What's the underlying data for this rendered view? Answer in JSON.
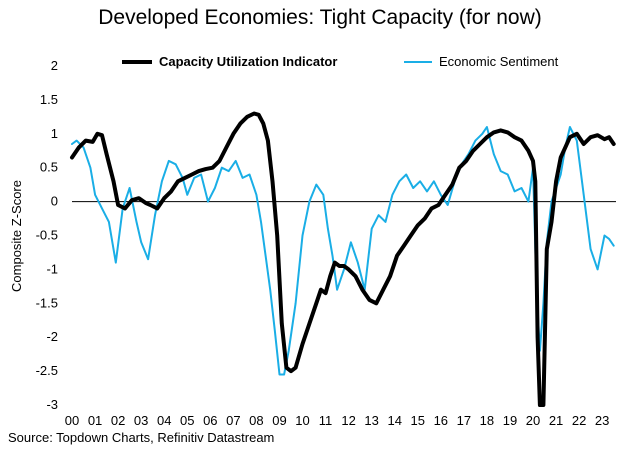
{
  "chart_data": {
    "type": "line",
    "title": "Developed Economies: Tight Capacity (for now)",
    "xlabel": "",
    "ylabel": "Composite Z-Score",
    "ylim": [
      -3,
      2
    ],
    "xlim": [
      2000,
      2023.6
    ],
    "yticks": [
      "2",
      "1.5",
      "1",
      "0.5",
      "0",
      "-0.5",
      "-1",
      "-1.5",
      "-2",
      "-2.5",
      "-3"
    ],
    "xticks": [
      "00",
      "01",
      "02",
      "03",
      "04",
      "05",
      "06",
      "07",
      "08",
      "09",
      "10",
      "11",
      "12",
      "13",
      "14",
      "15",
      "16",
      "17",
      "18",
      "19",
      "20",
      "21",
      "22",
      "23"
    ],
    "series": [
      {
        "name": "Capacity Utilization Indicator",
        "color": "#000000",
        "style": "bold",
        "x": [
          2000.0,
          2000.3,
          2000.6,
          2000.9,
          2001.1,
          2001.3,
          2001.5,
          2001.8,
          2002.0,
          2002.3,
          2002.6,
          2002.9,
          2003.2,
          2003.4,
          2003.7,
          2004.0,
          2004.3,
          2004.6,
          2004.9,
          2005.2,
          2005.5,
          2005.8,
          2006.1,
          2006.4,
          2006.7,
          2007.0,
          2007.3,
          2007.6,
          2007.9,
          2008.1,
          2008.3,
          2008.5,
          2008.7,
          2008.9,
          2009.1,
          2009.3,
          2009.5,
          2009.7,
          2010.0,
          2010.3,
          2010.6,
          2010.8,
          2011.0,
          2011.2,
          2011.4,
          2011.6,
          2011.8,
          2012.0,
          2012.3,
          2012.6,
          2012.9,
          2013.2,
          2013.5,
          2013.8,
          2014.1,
          2014.4,
          2014.7,
          2015.0,
          2015.3,
          2015.6,
          2015.9,
          2016.2,
          2016.5,
          2016.8,
          2017.1,
          2017.4,
          2017.7,
          2018.0,
          2018.3,
          2018.6,
          2018.9,
          2019.2,
          2019.5,
          2019.8,
          2020.0,
          2020.1,
          2020.2,
          2020.3,
          2020.45,
          2020.6,
          2020.8,
          2021.0,
          2021.2,
          2021.4,
          2021.6,
          2021.9,
          2022.2,
          2022.5,
          2022.8,
          2023.1,
          2023.3,
          2023.5
        ],
        "values": [
          0.65,
          0.8,
          0.9,
          0.88,
          1.0,
          0.98,
          0.7,
          0.3,
          -0.05,
          -0.1,
          0.02,
          0.05,
          -0.02,
          -0.05,
          -0.1,
          0.05,
          0.15,
          0.3,
          0.35,
          0.4,
          0.45,
          0.48,
          0.5,
          0.6,
          0.8,
          1.0,
          1.15,
          1.25,
          1.3,
          1.28,
          1.15,
          0.9,
          0.3,
          -0.5,
          -1.8,
          -2.45,
          -2.5,
          -2.45,
          -2.1,
          -1.8,
          -1.5,
          -1.3,
          -1.35,
          -1.1,
          -0.9,
          -0.95,
          -0.95,
          -1.0,
          -1.1,
          -1.3,
          -1.45,
          -1.5,
          -1.3,
          -1.1,
          -0.8,
          -0.65,
          -0.5,
          -0.35,
          -0.25,
          -0.1,
          -0.05,
          0.1,
          0.25,
          0.5,
          0.6,
          0.75,
          0.85,
          0.95,
          1.02,
          1.05,
          1.02,
          0.95,
          0.9,
          0.75,
          0.6,
          0.3,
          -2.0,
          -3.0,
          -3.0,
          -0.7,
          -0.3,
          0.3,
          0.65,
          0.8,
          0.95,
          1.0,
          0.85,
          0.95,
          0.98,
          0.92,
          0.95,
          0.85
        ]
      },
      {
        "name": "Economic Sentiment",
        "color": "#1aaee6",
        "style": "normal",
        "x": [
          2000.0,
          2000.2,
          2000.5,
          2000.8,
          2001.0,
          2001.3,
          2001.6,
          2001.9,
          2002.2,
          2002.5,
          2002.8,
          2003.0,
          2003.3,
          2003.6,
          2003.9,
          2004.2,
          2004.5,
          2004.8,
          2005.0,
          2005.3,
          2005.6,
          2005.9,
          2006.2,
          2006.5,
          2006.8,
          2007.1,
          2007.4,
          2007.7,
          2008.0,
          2008.2,
          2008.4,
          2008.6,
          2008.8,
          2009.0,
          2009.2,
          2009.4,
          2009.7,
          2010.0,
          2010.3,
          2010.6,
          2010.9,
          2011.1,
          2011.3,
          2011.5,
          2011.8,
          2012.1,
          2012.4,
          2012.7,
          2013.0,
          2013.3,
          2013.6,
          2013.9,
          2014.2,
          2014.5,
          2014.8,
          2015.1,
          2015.4,
          2015.7,
          2016.0,
          2016.3,
          2016.6,
          2016.9,
          2017.2,
          2017.5,
          2017.8,
          2018.0,
          2018.3,
          2018.6,
          2018.9,
          2019.2,
          2019.5,
          2019.8,
          2020.0,
          2020.15,
          2020.3,
          2020.45,
          2020.6,
          2020.8,
          2021.0,
          2021.2,
          2021.4,
          2021.6,
          2021.9,
          2022.2,
          2022.5,
          2022.8,
          2023.1,
          2023.3,
          2023.5
        ],
        "values": [
          0.85,
          0.9,
          0.8,
          0.5,
          0.1,
          -0.1,
          -0.3,
          -0.9,
          -0.1,
          0.2,
          -0.3,
          -0.6,
          -0.85,
          -0.2,
          0.3,
          0.6,
          0.55,
          0.35,
          0.1,
          0.35,
          0.4,
          0.0,
          0.2,
          0.5,
          0.45,
          0.6,
          0.35,
          0.4,
          0.1,
          -0.3,
          -0.8,
          -1.3,
          -1.9,
          -2.55,
          -2.55,
          -2.2,
          -1.5,
          -0.5,
          0.0,
          0.25,
          0.1,
          -0.4,
          -0.8,
          -1.3,
          -1.0,
          -0.6,
          -0.9,
          -1.3,
          -0.4,
          -0.2,
          -0.3,
          0.1,
          0.3,
          0.4,
          0.2,
          0.3,
          0.15,
          0.3,
          0.1,
          -0.05,
          0.3,
          0.55,
          0.7,
          0.9,
          1.0,
          1.1,
          0.7,
          0.45,
          0.4,
          0.15,
          0.2,
          0.0,
          0.5,
          -1.3,
          -2.2,
          -1.5,
          -0.6,
          0.0,
          0.2,
          0.4,
          0.8,
          1.1,
          0.9,
          0.1,
          -0.7,
          -1.0,
          -0.5,
          -0.55,
          -0.65
        ]
      }
    ]
  },
  "title": "Developed Economies: Tight Capacity (for now)",
  "source": "Source: Topdown Charts, Refinitiv Datastream"
}
